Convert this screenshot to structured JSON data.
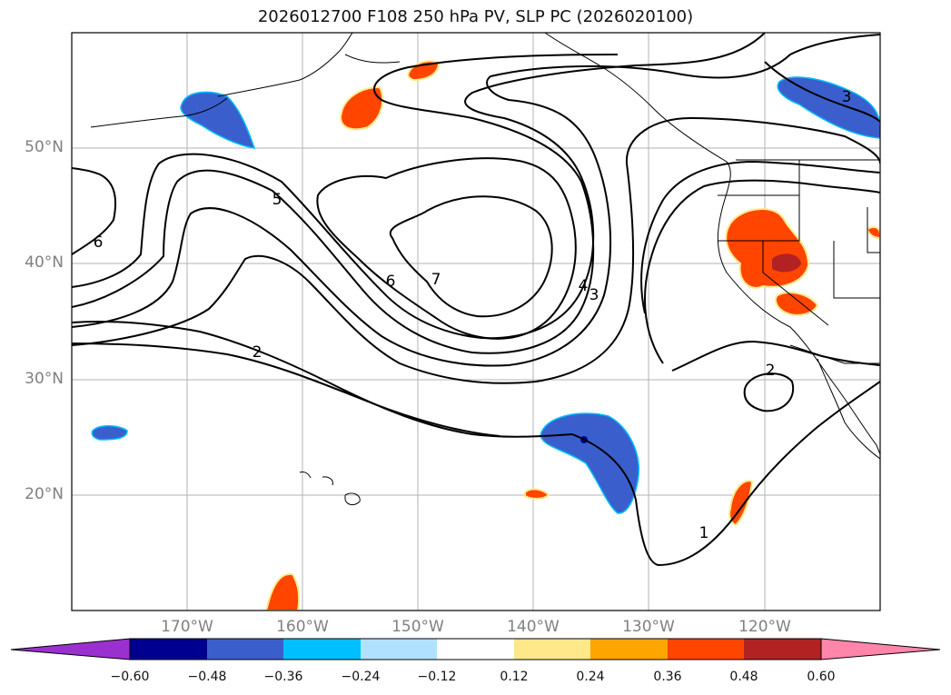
{
  "title": "2026012700 F108 250 hPa PV, SLP PC (2026020100)",
  "axes": {
    "lon_labels": [
      "170°W",
      "160°W",
      "150°W",
      "140°W",
      "130°W",
      "120°W"
    ],
    "lat_labels": [
      "50°N",
      "40°N",
      "30°N",
      "20°N"
    ]
  },
  "contour_labels": [
    "6",
    "5",
    "6",
    "7",
    "4",
    "3",
    "2",
    "2",
    "1",
    "3"
  ],
  "colorbar": {
    "ticks": [
      "−0.60",
      "−0.48",
      "−0.36",
      "−0.24",
      "−0.12",
      "0.12",
      "0.24",
      "0.36",
      "0.48",
      "0.60"
    ],
    "colors": [
      "#9b30d0",
      "#000090",
      "#3a5fcd",
      "#00bfff",
      "#b0e2ff",
      "#ffffff",
      "#ffe88a",
      "#ffa500",
      "#ff4500",
      "#b22222",
      "#ff85ab"
    ]
  }
}
